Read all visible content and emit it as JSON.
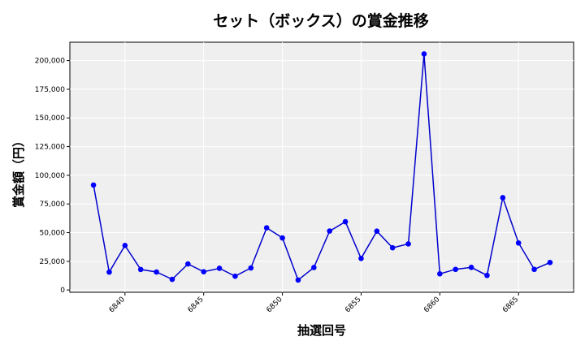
{
  "chart_data": {
    "type": "line",
    "title": "セット（ボックス）の賞金推移",
    "xlabel": "抽選回号",
    "ylabel": "賞金額（円）",
    "x": [
      6838,
      6839,
      6840,
      6841,
      6842,
      6843,
      6844,
      6845,
      6846,
      6847,
      6848,
      6849,
      6850,
      6851,
      6852,
      6853,
      6854,
      6855,
      6856,
      6857,
      6858,
      6859,
      6860,
      6861,
      6862,
      6863,
      6864,
      6865,
      6866,
      6867
    ],
    "values": [
      91500,
      15600,
      38800,
      17900,
      15700,
      9300,
      22700,
      15900,
      18900,
      12000,
      19200,
      54200,
      45400,
      8700,
      19600,
      51400,
      59500,
      27500,
      51300,
      36800,
      40200,
      205800,
      14100,
      18000,
      19700,
      12700,
      80500,
      41000,
      18000,
      24000
    ],
    "xlim": [
      6836.5,
      6868.5
    ],
    "ylim": [
      -2000,
      216000
    ],
    "xticks": [
      6840,
      6845,
      6850,
      6855,
      6860,
      6865
    ],
    "xtick_labels": [
      "6840",
      "6845",
      "6850",
      "6855",
      "6860",
      "6865"
    ],
    "yticks": [
      0,
      25000,
      50000,
      75000,
      100000,
      125000,
      150000,
      175000,
      200000
    ],
    "ytick_labels": [
      "0",
      "25,000",
      "50,000",
      "75,000",
      "100,000",
      "125,000",
      "150,000",
      "175,000",
      "200,000"
    ],
    "grid": true,
    "line_color": "#0000cd",
    "marker_color": "#0000ff",
    "plot_background": "#efefef"
  }
}
